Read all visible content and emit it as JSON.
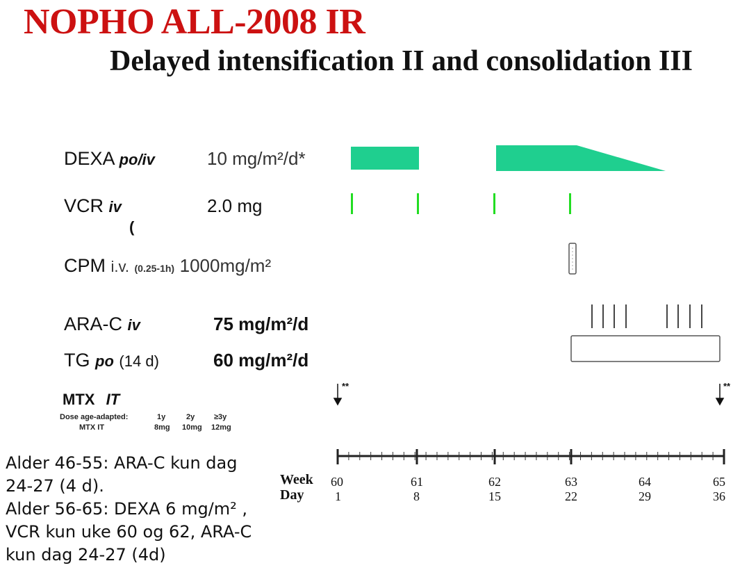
{
  "title": "NOPHO ALL-2008 IR",
  "subtitle": "Delayed intensification II and consolidation III",
  "drugs": {
    "dexa": {
      "name": "DEXA",
      "route": "po/iv",
      "dose": "10 mg/m²/d*"
    },
    "vcr": {
      "name": "VCR",
      "route": "iv",
      "dose": "2.0 mg",
      "stray": "("
    },
    "cpm": {
      "name": "CPM",
      "route": "i.v.",
      "duration": "(0.25-1h)",
      "dose": "1000mg/m²"
    },
    "arac": {
      "name": "ARA-C",
      "route": "iv",
      "dose": "75 mg/m²/d"
    },
    "tg": {
      "name": "TG",
      "route": "po",
      "duration": "(14 d)",
      "dose": "60 mg/m²/d"
    },
    "mtx": {
      "name": "MTX",
      "route": "IT"
    }
  },
  "mtx_dose_table": {
    "row1": [
      "Dose age-adapted:",
      "1y",
      "2y",
      "≥3y"
    ],
    "row2": [
      "MTX IT",
      "8mg",
      "10mg",
      "12mg"
    ]
  },
  "mtx_marker": "**",
  "timeline": {
    "weeks_label": "Week",
    "days_label": "Day",
    "weeks": [
      "60",
      "61",
      "62",
      "63",
      "64",
      "65"
    ],
    "days": [
      "1",
      "8",
      "15",
      "22",
      "29",
      "36"
    ]
  },
  "notes": [
    "Alder 46-55: ARA-C kun dag",
    "24-27 (4 d).",
    "Alder 56-65: DEXA 6 mg/m² ,",
    "VCR kun uke 60 og 62, ARA-C",
    "kun dag 24-27 (4d)"
  ],
  "colors": {
    "title": "#cc1111",
    "dexa_fill": "#1fcf8f",
    "vcr_mark": "#22dd22"
  }
}
